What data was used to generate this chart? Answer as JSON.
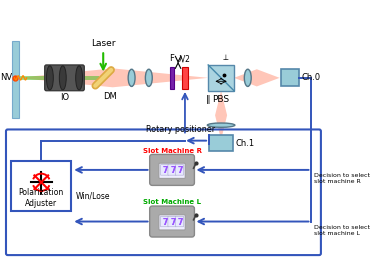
{
  "bg_color": "#ffffff",
  "laser_label": "Laser",
  "io_label": "IO",
  "dm_label": "DM",
  "nv_label": "NV",
  "f_label": "F",
  "lambda_label": "λ/2",
  "pbs_label": "PBS",
  "ch0_label": "Ch.0",
  "ch1_label": "Ch.1",
  "rotary_label": "Rotary positioner",
  "slot_r_label": "Slot Machine R",
  "slot_l_label": "Slot Machine L",
  "pol_label": "Polarization\nAdjuster",
  "win_lose_label": "Win/Lose",
  "decision_r_label": "Decision to select\nslot machine R",
  "decision_l_label": "Decision to select\nslot machine L",
  "red_beam_color": "#ff3300",
  "green_beam_color": "#22bb00",
  "blue_arrow_color": "#3355bb",
  "slot_r_color": "#ff0000",
  "slot_l_color": "#00aa00",
  "box_border_color": "#3355bb",
  "pbs_color": "#aad4e0",
  "lens_color": "#99ccd8",
  "wall_color": "#99ccd8",
  "dm_color": "#ddaa44",
  "dark_gray": "#555555",
  "mid_gray": "#888888",
  "light_gray": "#aaaaaa"
}
